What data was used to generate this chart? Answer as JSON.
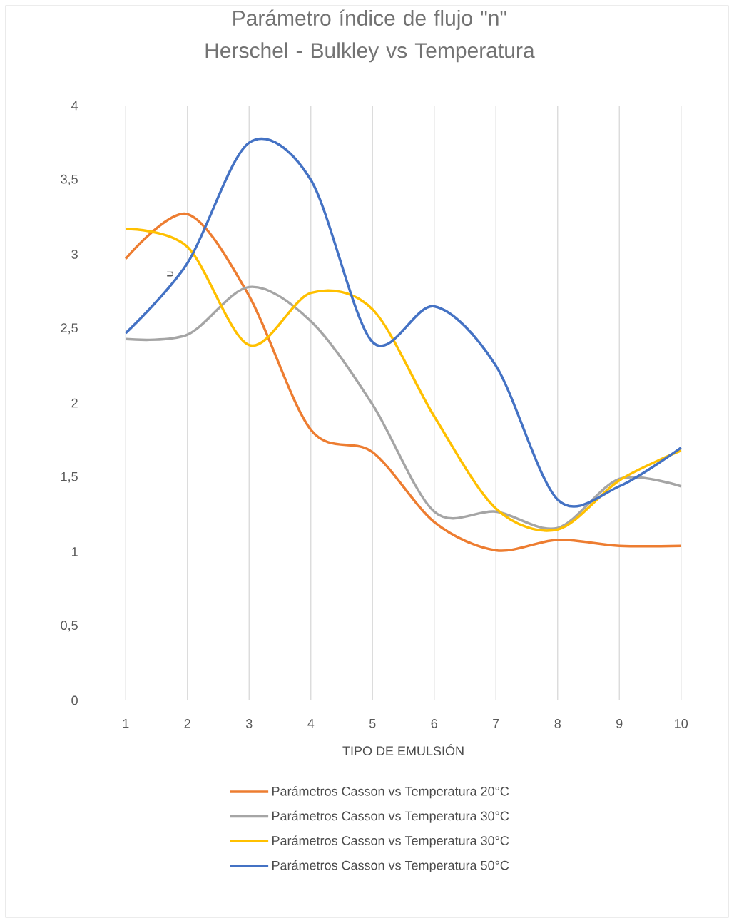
{
  "chart_data": {
    "type": "line",
    "title": "Parámetro índice de flujo  \"n\" Herschel - Bulkley vs Temperatura",
    "xlabel": "TIPO DE EMULSIÓN",
    "ylabel": "n",
    "categories": [
      "1",
      "2",
      "3",
      "4",
      "5",
      "6",
      "7",
      "8",
      "9",
      "10"
    ],
    "ylim": [
      0,
      4
    ],
    "yticks": [
      0,
      {
        "value": 0.5,
        "label": "0,5"
      },
      1,
      {
        "value": 1.5,
        "label": "1,5"
      },
      2,
      {
        "value": 2.5,
        "label": "2,5"
      },
      3,
      {
        "value": 3.5,
        "label": "3,5"
      },
      4
    ],
    "grid": "x",
    "legend": "bottom",
    "series": [
      {
        "name": "Parámetros Casson vs Temperatura 20°C",
        "color": "#ed7d31",
        "values": [
          2.97,
          3.27,
          2.72,
          1.82,
          1.67,
          1.2,
          1.01,
          1.08,
          1.04,
          1.04
        ]
      },
      {
        "name": "Parámetros Casson vs Temperatura 30°C",
        "color": "#a5a5a5",
        "values": [
          2.43,
          2.46,
          2.78,
          2.55,
          1.99,
          1.27,
          1.27,
          1.16,
          1.49,
          1.44
        ]
      },
      {
        "name": "Parámetros Casson vs Temperatura 30°C",
        "color": "#ffc000",
        "values": [
          3.17,
          3.05,
          2.39,
          2.74,
          2.63,
          1.91,
          1.29,
          1.15,
          1.48,
          1.68
        ]
      },
      {
        "name": "Parámetros Casson vs Temperatura 50°C",
        "color": "#4472c4",
        "values": [
          2.47,
          2.94,
          3.75,
          3.5,
          2.41,
          2.65,
          2.25,
          1.35,
          1.44,
          1.7
        ]
      }
    ]
  }
}
